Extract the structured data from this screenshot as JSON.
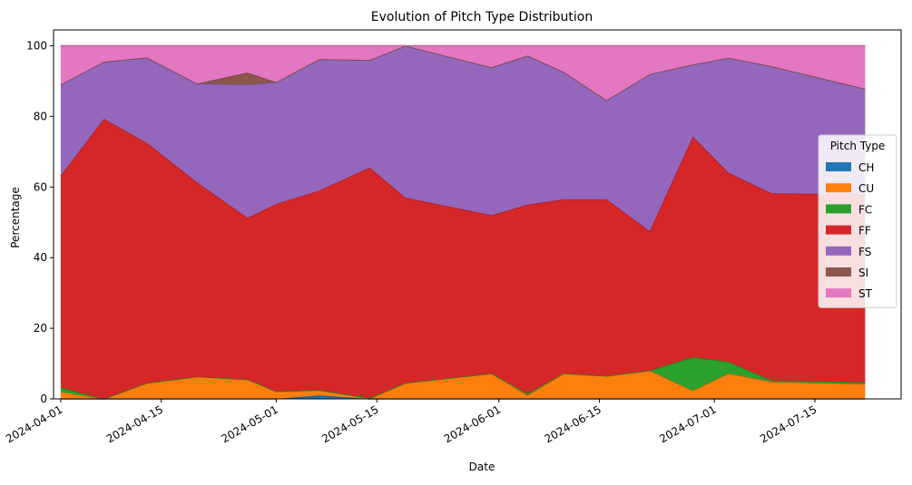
{
  "chart_data": {
    "type": "area",
    "stacked": true,
    "title": "Evolution of Pitch Type Distribution",
    "xlabel": "Date",
    "ylabel": "Percentage",
    "ylim": [
      0,
      104.5
    ],
    "xlim": [
      "2024-03-31",
      "2024-07-27"
    ],
    "yticks": [
      "0",
      "20",
      "40",
      "60",
      "80",
      "100"
    ],
    "xticks": [
      {
        "date": "2024-04-01",
        "label": "2024-04-01"
      },
      {
        "date": "2024-04-15",
        "label": "2024-04-15"
      },
      {
        "date": "2024-05-01",
        "label": "2024-05-01"
      },
      {
        "date": "2024-05-15",
        "label": "2024-05-15"
      },
      {
        "date": "2024-06-01",
        "label": "2024-06-01"
      },
      {
        "date": "2024-06-15",
        "label": "2024-06-15"
      },
      {
        "date": "2024-07-01",
        "label": "2024-07-01"
      },
      {
        "date": "2024-07-15",
        "label": "2024-07-15"
      }
    ],
    "x": [
      "2024-04-01",
      "2024-04-07",
      "2024-04-13",
      "2024-04-20",
      "2024-04-27",
      "2024-05-01",
      "2024-05-07",
      "2024-05-14",
      "2024-05-19",
      "2024-05-31",
      "2024-06-05",
      "2024-06-10",
      "2024-06-16",
      "2024-06-22",
      "2024-06-28",
      "2024-07-03",
      "2024-07-09",
      "2024-07-22"
    ],
    "legend": {
      "title": "Pitch Type",
      "position": "center right"
    },
    "grid": false,
    "series": [
      {
        "name": "CH",
        "color": "#1f77b4",
        "values": [
          0,
          0,
          0,
          0,
          0,
          0,
          1,
          0,
          0,
          0,
          0,
          0,
          0,
          0,
          0,
          0,
          0,
          0
        ]
      },
      {
        "name": "CU",
        "color": "#ff7f0e",
        "values": [
          2,
          0,
          4.5,
          6.3,
          5.5,
          2.1,
          1.5,
          0,
          4.5,
          7.2,
          1,
          7.2,
          6.5,
          8,
          2.3,
          7.2,
          4.8,
          4.2
        ]
      },
      {
        "name": "FC",
        "color": "#2ca02c",
        "values": [
          1.2,
          0,
          0,
          0,
          0,
          0,
          0,
          0.3,
          0,
          0,
          0.5,
          0,
          0,
          0,
          9.5,
          3.3,
          0.4,
          0.5
        ]
      },
      {
        "name": "FF",
        "color": "#d62728",
        "values": [
          60,
          79.3,
          68,
          55,
          45.8,
          53.1,
          56.5,
          65.2,
          52.5,
          44.8,
          53.5,
          49.3,
          50,
          39.5,
          62.5,
          53.5,
          53,
          53.3
        ]
      },
      {
        "name": "FS",
        "color": "#9467bd",
        "values": [
          25.8,
          16.2,
          24.2,
          28,
          37.7,
          34.5,
          37.2,
          30.5,
          43,
          41.9,
          42.2,
          36.1,
          28.1,
          44.5,
          20.4,
          32.6,
          36,
          29.8
        ]
      },
      {
        "name": "SI",
        "color": "#8c564b",
        "values": [
          0,
          0,
          0,
          0,
          3.4,
          0,
          0,
          0,
          0,
          0,
          0,
          0,
          0,
          0,
          0,
          0,
          0,
          0
        ]
      },
      {
        "name": "ST",
        "color": "#e377c2",
        "values": [
          11,
          4.5,
          3.3,
          10.7,
          7.6,
          10.3,
          3.8,
          4,
          0,
          6.1,
          2.8,
          7.4,
          15.4,
          8,
          5.3,
          3.4,
          5.8,
          12.2
        ]
      }
    ]
  }
}
